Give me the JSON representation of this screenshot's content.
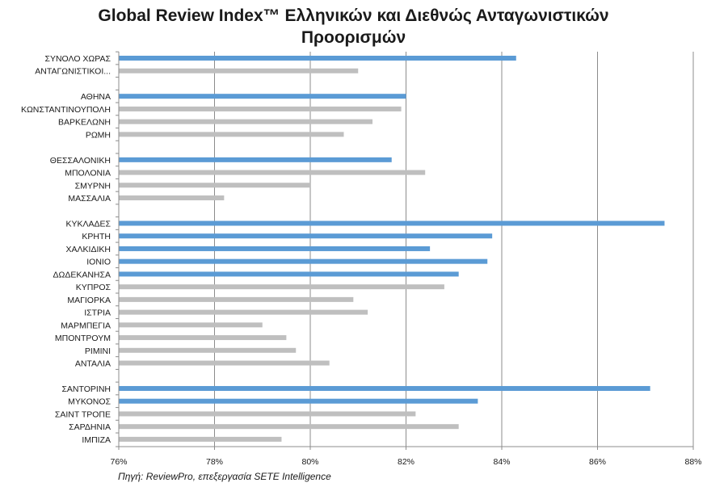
{
  "chart_data": {
    "type": "bar",
    "orientation": "horizontal",
    "title_line1": "Global  Review Index™ Ελληνικών και Διεθνώς Ανταγωνιστικών",
    "title_line2": "Προορισμών",
    "xlabel": "",
    "ylabel": "",
    "xlim": [
      76,
      88
    ],
    "xticks": [
      76,
      78,
      80,
      82,
      84,
      86,
      88
    ],
    "tick_suffix": "%",
    "grid": "vertical",
    "colors": {
      "greek": "#5b9bd5",
      "competitor": "#bfbfbf",
      "grid": "#8c8c8c"
    },
    "rows": [
      {
        "label": "ΣΥΝΟΛΟ ΧΩΡΑΣ",
        "value": 84.3,
        "group": "greek"
      },
      {
        "label": "ΑΝΤΑΓΩΝΙΣΤΙΚΟΙ...",
        "value": 81.0,
        "group": "competitor"
      },
      {
        "label": "",
        "value": null,
        "group": "gap"
      },
      {
        "label": "ΑΘΗΝΑ",
        "value": 82.0,
        "group": "greek"
      },
      {
        "label": "ΚΩΝΣΤΑΝΤΙΝΟΥΠΟΛΗ",
        "value": 81.9,
        "group": "competitor"
      },
      {
        "label": "ΒΑΡΚΕΛΩΝΗ",
        "value": 81.3,
        "group": "competitor"
      },
      {
        "label": "ΡΩΜΗ",
        "value": 80.7,
        "group": "competitor"
      },
      {
        "label": "",
        "value": null,
        "group": "gap"
      },
      {
        "label": "ΘΕΣΣΑΛΟΝΙΚΗ",
        "value": 81.7,
        "group": "greek"
      },
      {
        "label": "ΜΠΟΛΟΝΙΑ",
        "value": 82.4,
        "group": "competitor"
      },
      {
        "label": "ΣΜΥΡΝΗ",
        "value": 80.0,
        "group": "competitor"
      },
      {
        "label": "ΜΑΣΣΑΛΙΑ",
        "value": 78.2,
        "group": "competitor"
      },
      {
        "label": "",
        "value": null,
        "group": "gap"
      },
      {
        "label": "ΚΥΚΛΑΔΕΣ",
        "value": 87.4,
        "group": "greek"
      },
      {
        "label": "ΚΡΗΤΗ",
        "value": 83.8,
        "group": "greek"
      },
      {
        "label": "ΧΑΛΚΙΔΙΚΗ",
        "value": 82.5,
        "group": "greek"
      },
      {
        "label": "ΙΟΝΙΟ",
        "value": 83.7,
        "group": "greek"
      },
      {
        "label": "ΔΩΔΕΚΑΝΗΣΑ",
        "value": 83.1,
        "group": "greek"
      },
      {
        "label": "ΚΥΠΡΟΣ",
        "value": 82.8,
        "group": "competitor"
      },
      {
        "label": "ΜΑΓΙΟΡΚΑ",
        "value": 80.9,
        "group": "competitor"
      },
      {
        "label": "ΙΣΤΡΙΑ",
        "value": 81.2,
        "group": "competitor"
      },
      {
        "label": "ΜΑΡΜΠΕΓΙΑ",
        "value": 79.0,
        "group": "competitor"
      },
      {
        "label": "ΜΠΟΝΤΡΟΥΜ",
        "value": 79.5,
        "group": "competitor"
      },
      {
        "label": "ΡΙΜΙΝΙ",
        "value": 79.7,
        "group": "competitor"
      },
      {
        "label": "ΑΝΤΑΛΙΑ",
        "value": 80.4,
        "group": "competitor"
      },
      {
        "label": "",
        "value": null,
        "group": "gap"
      },
      {
        "label": "ΣΑΝΤΟΡΙΝΗ",
        "value": 87.1,
        "group": "greek"
      },
      {
        "label": "ΜΥΚΟΝΟΣ",
        "value": 83.5,
        "group": "greek"
      },
      {
        "label": "ΣΑΙΝΤ ΤΡΟΠΕ",
        "value": 82.2,
        "group": "competitor"
      },
      {
        "label": "ΣΑΡΔΗΝΙΑ",
        "value": 83.1,
        "group": "competitor"
      },
      {
        "label": "ΙΜΠΙΖΑ",
        "value": 79.4,
        "group": "competitor"
      }
    ]
  },
  "source_note": "Πηγή: ReviewPro, επεξεργασία SETE Intelligence"
}
